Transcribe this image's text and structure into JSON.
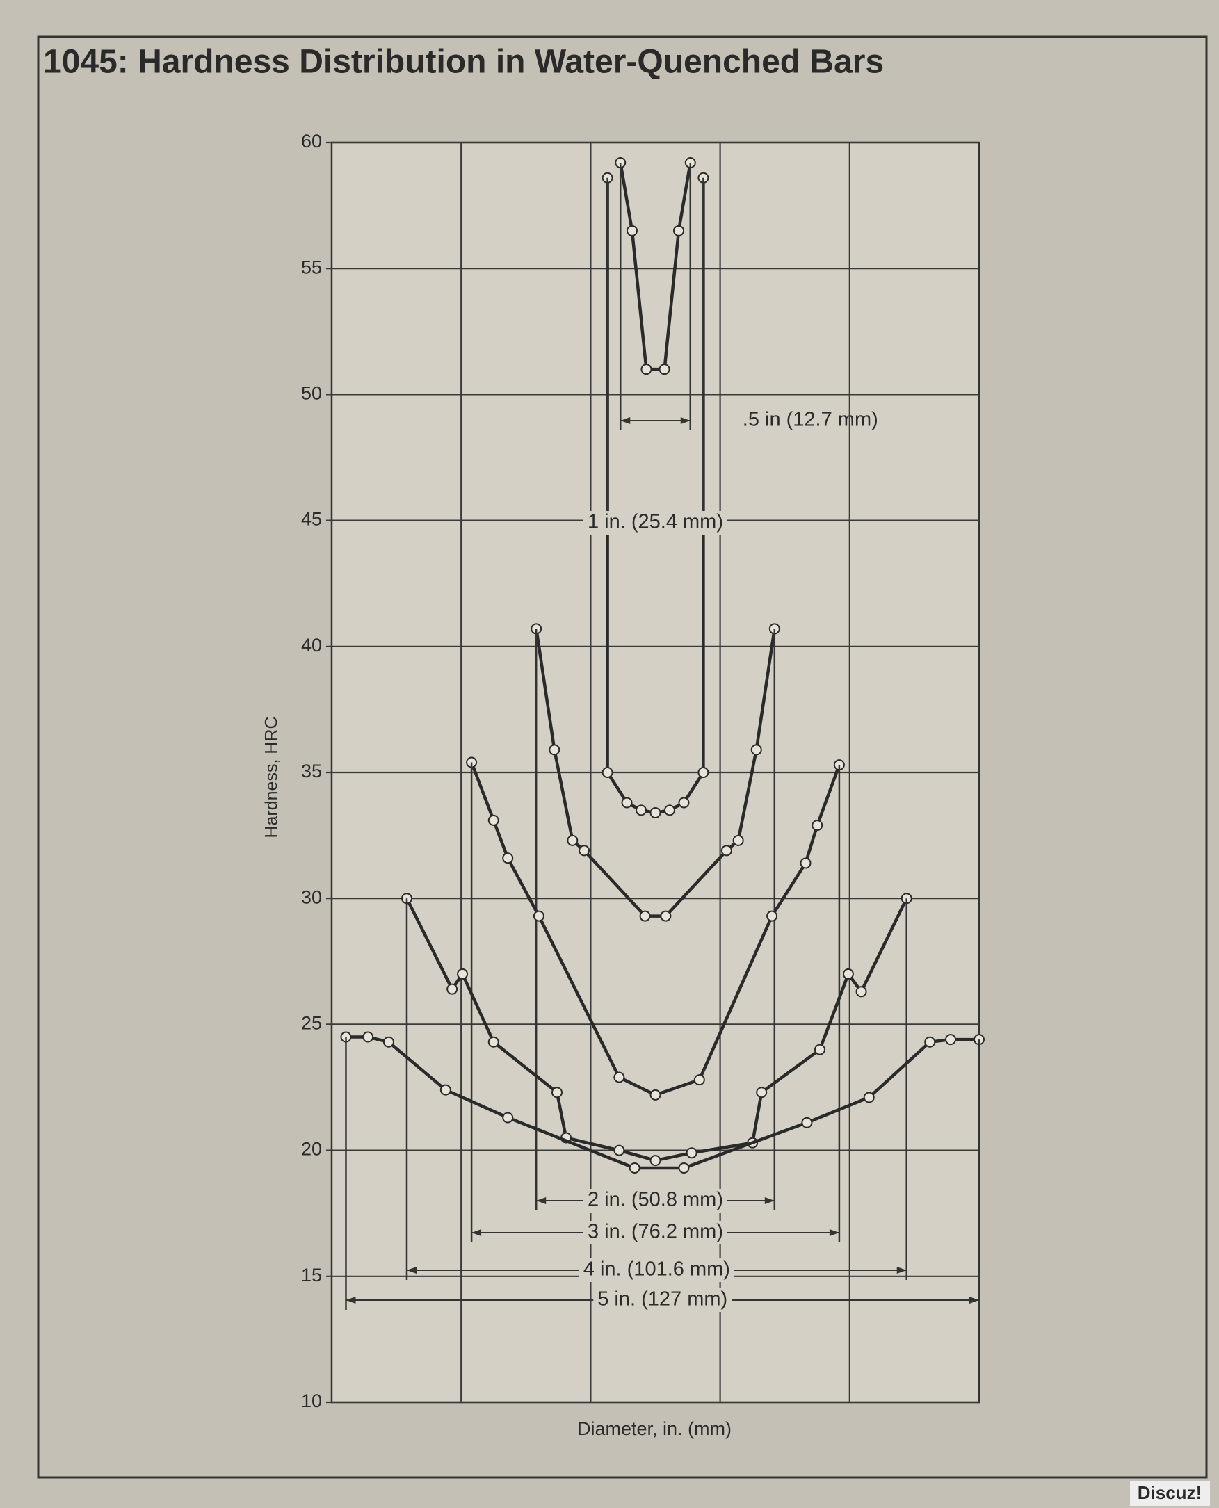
{
  "chart_data": {
    "type": "line",
    "title": "1045: Hardness Distribution in Water-Quenched Bars",
    "y_label": "Hardness, HRC",
    "x_label": "Diameter, in. (mm)",
    "watermark": "Discuz!",
    "xlim": [
      -2.5,
      2.5
    ],
    "ylim": [
      10,
      60
    ],
    "yticks": [
      10,
      15,
      20,
      25,
      30,
      35,
      40,
      45,
      50,
      55,
      60
    ],
    "grid": true,
    "series": [
      {
        "name": ".5 in (12.7 mm)",
        "color": "#2a2a2a",
        "x": [
          -0.27,
          -0.18,
          -0.07,
          0.07,
          0.18,
          0.27
        ],
        "values": [
          59.2,
          56.5,
          51,
          51,
          56.5,
          59.2
        ]
      },
      {
        "name": "1 in. (25.4 mm)",
        "color": "#2a2a2a",
        "x": [
          -0.37,
          -0.37,
          -0.22,
          -0.11,
          0,
          0.11,
          0.22,
          0.37,
          0.37
        ],
        "values": [
          58.6,
          35,
          33.8,
          33.5,
          33.4,
          33.5,
          33.8,
          35,
          58.6
        ]
      },
      {
        "name": "2 in. (50.8 mm)",
        "color": "#2a2a2a",
        "x": [
          -0.92,
          -0.78,
          -0.64,
          -0.55,
          -0.08,
          0.08,
          0.55,
          0.64,
          0.78,
          0.92
        ],
        "values": [
          40.7,
          35.9,
          32.3,
          31.9,
          29.3,
          29.3,
          31.9,
          32.3,
          35.9,
          40.7
        ]
      },
      {
        "name": "3 in. (76.2 mm)",
        "color": "#2a2a2a",
        "x": [
          -1.42,
          -1.25,
          -1.14,
          -0.9,
          -0.28,
          0,
          0.34,
          0.9,
          1.16,
          1.25,
          1.42
        ],
        "values": [
          35.4,
          33.1,
          31.6,
          29.3,
          22.9,
          22.2,
          22.8,
          29.3,
          31.4,
          32.9,
          35.3
        ]
      },
      {
        "name": "4 in. (101.6 mm)",
        "color": "#2a2a2a",
        "x": [
          -1.92,
          -1.57,
          -1.49,
          -1.25,
          -0.76,
          -0.69,
          -0.28,
          0,
          0.28,
          0.75,
          0.82,
          1.27,
          1.49,
          1.59,
          1.94
        ],
        "values": [
          30,
          26.4,
          27,
          24.3,
          22.3,
          20.5,
          20,
          19.6,
          19.9,
          20.3,
          22.3,
          24,
          27,
          26.3,
          30
        ]
      },
      {
        "name": "5 in. (127 mm)",
        "color": "#2a2a2a",
        "x": [
          -2.39,
          -2.22,
          -2.06,
          -1.62,
          -1.14,
          -0.16,
          0.22,
          1.17,
          1.65,
          2.12,
          2.28,
          2.5
        ],
        "values": [
          24.5,
          24.5,
          24.3,
          22.4,
          21.3,
          19.3,
          19.3,
          21.1,
          22.1,
          24.3,
          24.4,
          24.4
        ]
      }
    ]
  }
}
